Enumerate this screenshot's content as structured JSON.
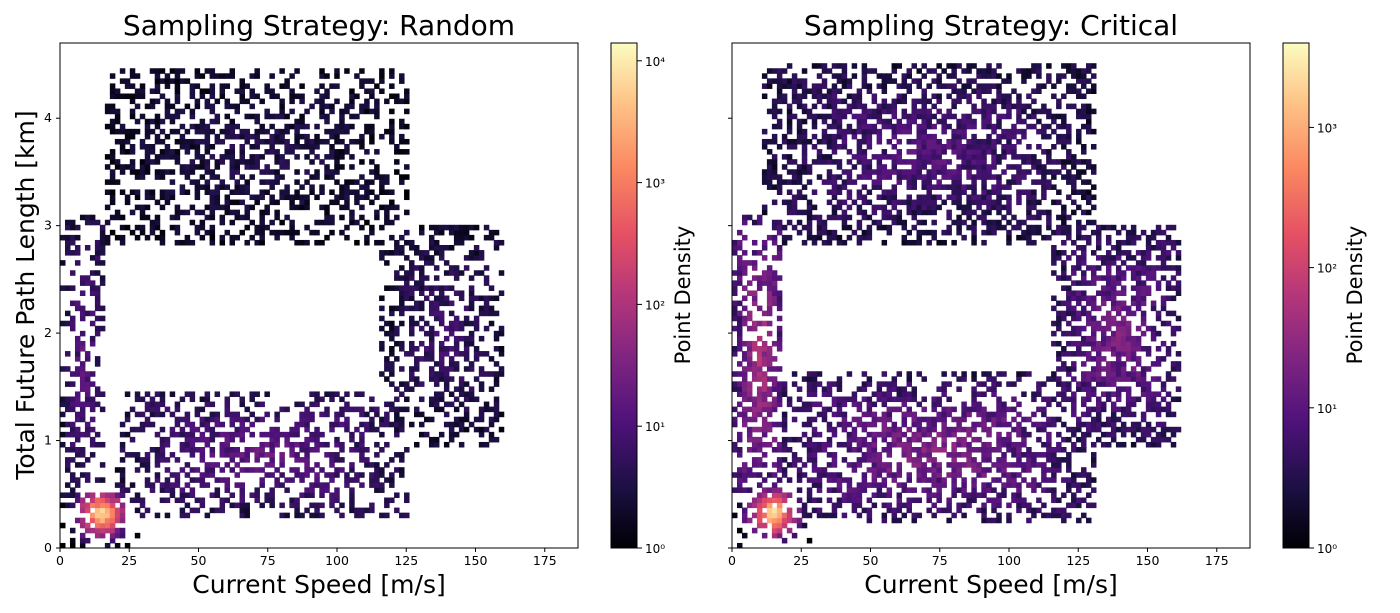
{
  "chart_data": [
    {
      "type": "heatmap",
      "title": "Sampling Strategy: Random",
      "xlabel": "Current Speed [m/s]",
      "ylabel": "Total Future Path Length [km]",
      "xlim": [
        0,
        187
      ],
      "ylim": [
        0,
        4.7
      ],
      "xticks": [
        0,
        25,
        50,
        75,
        100,
        125,
        150,
        175
      ],
      "yticks": [
        0,
        1,
        2,
        3,
        4
      ],
      "grid": false,
      "colorscale": "magma",
      "colorbar": {
        "label": "Point Density",
        "scale": "log",
        "range": [
          1,
          14000
        ],
        "ticks": [
          {
            "value": 1,
            "label": "10⁰"
          },
          {
            "value": 10,
            "label": "10¹"
          },
          {
            "value": 100,
            "label": "10²"
          },
          {
            "value": 1000,
            "label": "10³"
          },
          {
            "value": 10000,
            "label": "10⁴"
          }
        ]
      },
      "density_regions": [
        {
          "name": "low-speed core",
          "x": [
            0,
            30
          ],
          "y": [
            0,
            0.75
          ],
          "peak_density": 14000
        },
        {
          "name": "lower-right arm",
          "x": [
            20,
            125
          ],
          "y": [
            0.25,
            1.45
          ],
          "peak_density": 20
        },
        {
          "name": "vertical stem",
          "x": [
            0,
            15
          ],
          "y": [
            0.4,
            3.1
          ],
          "peak_density": 15
        },
        {
          "name": "right cluster",
          "x": [
            115,
            160
          ],
          "y": [
            0.9,
            3.0
          ],
          "peak_density": 8
        },
        {
          "name": "upper arc",
          "x": [
            15,
            125
          ],
          "y": [
            2.8,
            4.45
          ],
          "peak_density": 4
        }
      ]
    },
    {
      "type": "heatmap",
      "title": "Sampling Strategy: Critical",
      "xlabel": "Current Speed [m/s]",
      "ylabel": "",
      "xlim": [
        0,
        187
      ],
      "ylim": [
        0,
        4.7
      ],
      "xticks": [
        0,
        25,
        50,
        75,
        100,
        125,
        150,
        175
      ],
      "yticks": [
        0,
        1,
        2,
        3,
        4
      ],
      "grid": false,
      "colorscale": "magma",
      "colorbar": {
        "label": "Point Density",
        "scale": "log",
        "range": [
          1,
          4000
        ],
        "ticks": [
          {
            "value": 1,
            "label": "10⁰"
          },
          {
            "value": 10,
            "label": "10¹"
          },
          {
            "value": 100,
            "label": "10²"
          },
          {
            "value": 1000,
            "label": "10³"
          }
        ]
      },
      "density_regions": [
        {
          "name": "low-speed core",
          "x": [
            0,
            28
          ],
          "y": [
            0,
            0.75
          ],
          "peak_density": 4000
        },
        {
          "name": "vertical stem",
          "x": [
            0,
            18
          ],
          "y": [
            0.4,
            3.1
          ],
          "peak_density": 60
        },
        {
          "name": "lower-right arm",
          "x": [
            15,
            130
          ],
          "y": [
            0.2,
            1.6
          ],
          "peak_density": 25
        },
        {
          "name": "right cluster",
          "x": [
            115,
            162
          ],
          "y": [
            0.9,
            3.0
          ],
          "peak_density": 20
        },
        {
          "name": "upper arc",
          "x": [
            10,
            130
          ],
          "y": [
            2.8,
            4.5
          ],
          "peak_density": 10
        }
      ]
    }
  ]
}
